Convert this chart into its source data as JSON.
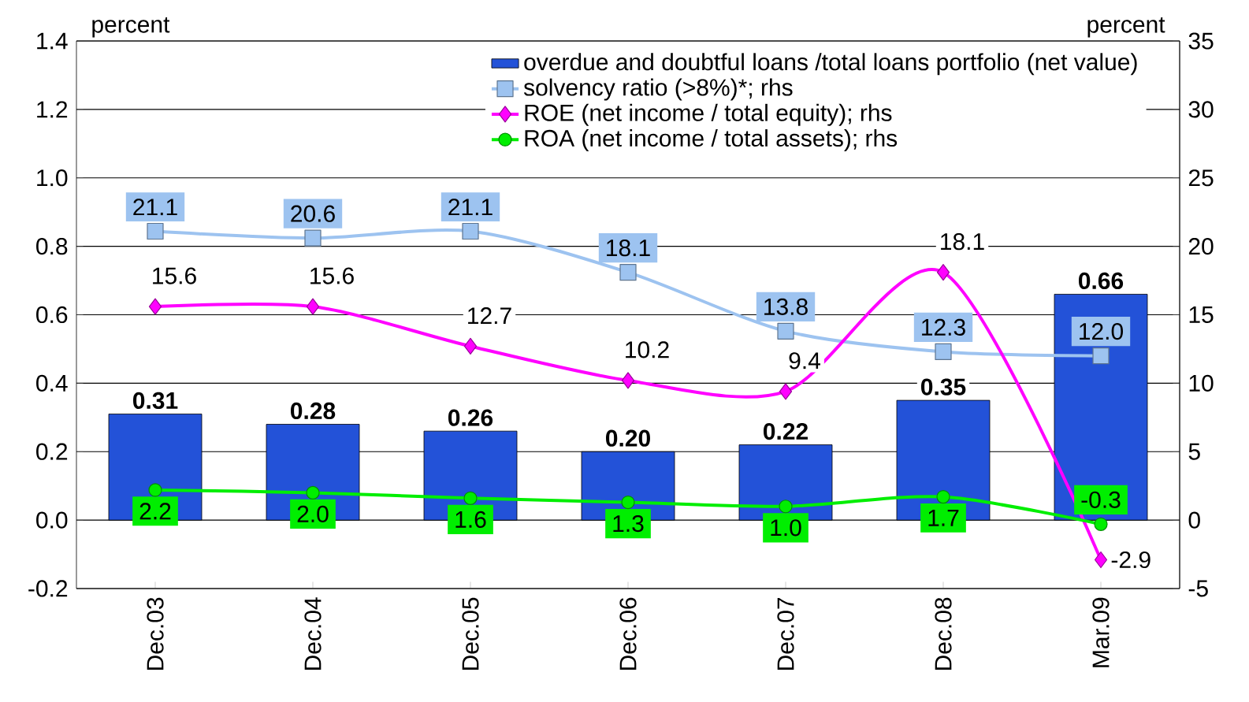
{
  "chart_data": {
    "type": "bar",
    "ylabel": "percent",
    "y2label": "percent",
    "categories": [
      "Dec.03",
      "Dec.04",
      "Dec.05",
      "Dec.06",
      "Dec.07",
      "Dec.08",
      "Mar.09"
    ],
    "series": [
      {
        "name": "overdue and doubtful loans /total loans portfolio (net value)",
        "color": "#2352d8",
        "values": [
          0.31,
          0.28,
          0.26,
          0.2,
          0.22,
          0.35,
          0.66
        ],
        "value_labels": [
          "0.31",
          "0.28",
          "0.26",
          "0.20",
          "0.22",
          "0.35",
          "0.66"
        ]
      },
      {
        "name": "solvency ratio (>8%)*; rhs",
        "type": "line",
        "axis": "y2",
        "marker": "square",
        "color": "#9dc3f0",
        "values": [
          21.1,
          20.6,
          21.1,
          18.1,
          13.8,
          12.3,
          12.0
        ],
        "value_labels": [
          "21.1",
          "20.6",
          "21.1",
          "18.1",
          "13.8",
          "12.3",
          "12.0"
        ]
      },
      {
        "name": "ROE (net income / total equity); rhs",
        "type": "line",
        "axis": "y2",
        "marker": "diamond",
        "color": "#ff00ff",
        "values": [
          15.6,
          15.6,
          12.7,
          10.2,
          9.4,
          18.1,
          -2.9
        ],
        "value_labels": [
          "15.6",
          "15.6",
          "12.7",
          "10.2",
          "9.4",
          "18.1",
          "-2.9"
        ]
      },
      {
        "name": "ROA (net income / total assets); rhs",
        "type": "line",
        "axis": "y2",
        "marker": "circle",
        "color": "#00ee00",
        "values": [
          2.2,
          2.0,
          1.6,
          1.3,
          1.0,
          1.7,
          -0.3
        ],
        "value_labels": [
          "2.2",
          "2.0",
          "1.6",
          "1.3",
          "1.0",
          "1.7",
          "-0.3"
        ]
      }
    ],
    "ylim": [
      -0.2,
      1.4
    ],
    "yticks": [
      -0.2,
      {
        "value": 0,
        "label": "0.0"
      },
      0.2,
      0.4,
      0.6,
      0.8,
      {
        "value": 1,
        "label": "1.0"
      },
      1.2,
      1.4
    ],
    "y2lim": [
      -5,
      35
    ],
    "y2ticks": [
      -5,
      0,
      5,
      10,
      15,
      20,
      25,
      30,
      35
    ],
    "grid": "y",
    "legend": "top right"
  }
}
